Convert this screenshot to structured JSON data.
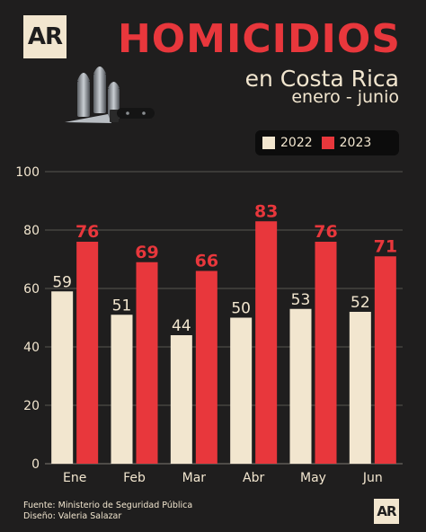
{
  "brand": {
    "logo_text": "AR"
  },
  "header": {
    "title": "HOMICIDIOS",
    "subtitle": "en Costa Rica",
    "period": "enero - junio"
  },
  "legend": [
    {
      "label": "2022",
      "color": "#f2e6cf"
    },
    {
      "label": "2023",
      "color": "#e8373c"
    }
  ],
  "chart_data": {
    "type": "bar",
    "categories": [
      "Ene",
      "Feb",
      "Mar",
      "Abr",
      "May",
      "Jun"
    ],
    "series": [
      {
        "name": "2022",
        "values": [
          59,
          51,
          44,
          50,
          53,
          52
        ],
        "color": "#f2e6cf"
      },
      {
        "name": "2023",
        "values": [
          76,
          69,
          66,
          83,
          76,
          71
        ],
        "color": "#e8373c"
      }
    ],
    "ylim": [
      0,
      100
    ],
    "yticks": [
      0,
      20,
      40,
      60,
      80,
      100
    ],
    "grid": true,
    "legend_position": "top-right"
  },
  "footer": {
    "source": "Fuente: Ministerio de Seguridad Pública",
    "design": "Diseño: Valeria Salazar"
  }
}
